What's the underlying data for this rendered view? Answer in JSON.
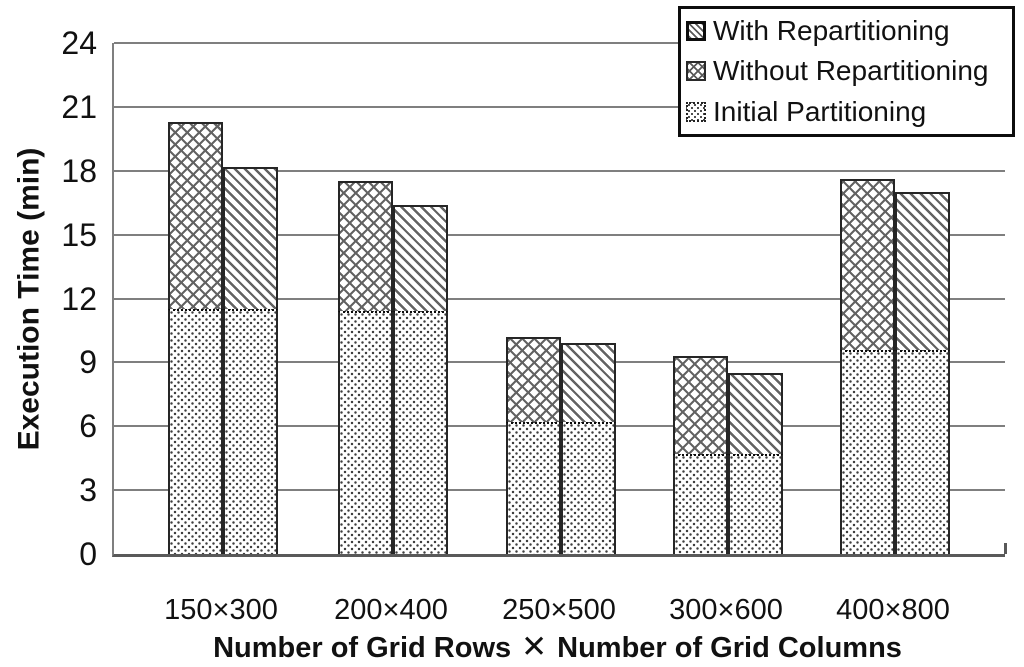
{
  "colors": {
    "background": "#ffffff",
    "gridline": "#7f7f7f",
    "axis": "#595959",
    "pattern_gray": "#636363",
    "text": "#111111",
    "bar_border": "#262626"
  },
  "chart_data": {
    "type": "bar",
    "stacked": true,
    "title": "",
    "xlabel": "Number of Grid Rows ✕ Number of Grid Columns",
    "xlabel_parts": [
      "Number of Grid Rows",
      "✕",
      "Number of Grid Columns"
    ],
    "ylabel": "Execution Time (min)",
    "ylim": [
      0,
      24
    ],
    "ytick_step": 3,
    "yticks": [
      0,
      3,
      6,
      9,
      12,
      15,
      18,
      21,
      24
    ],
    "grid": "horizontal",
    "legend_position": "top-right-overlapping-plot",
    "categories": [
      "150×300",
      "200×400",
      "250×500",
      "300×600",
      "400×800"
    ],
    "series": [
      {
        "name": "Initial Partitioning",
        "pattern": "dots",
        "role": "base-of-both-bars",
        "values": [
          11.5,
          11.4,
          6.2,
          4.7,
          9.6
        ]
      },
      {
        "name": "Without Repartitioning",
        "pattern": "crosshatch",
        "role": "left-bar-total",
        "totals": [
          20.3,
          17.5,
          10.2,
          9.3,
          17.6
        ]
      },
      {
        "name": "With Repartitioning",
        "pattern": "diagonal",
        "role": "right-bar-total",
        "totals": [
          18.2,
          16.4,
          9.9,
          8.5,
          17.0
        ]
      }
    ],
    "legend": [
      {
        "label": "With Repartitioning",
        "pattern": "diagonal"
      },
      {
        "label": "Without Repartitioning",
        "pattern": "crosshatch"
      },
      {
        "label": "Initial Partitioning",
        "pattern": "dots"
      }
    ]
  }
}
